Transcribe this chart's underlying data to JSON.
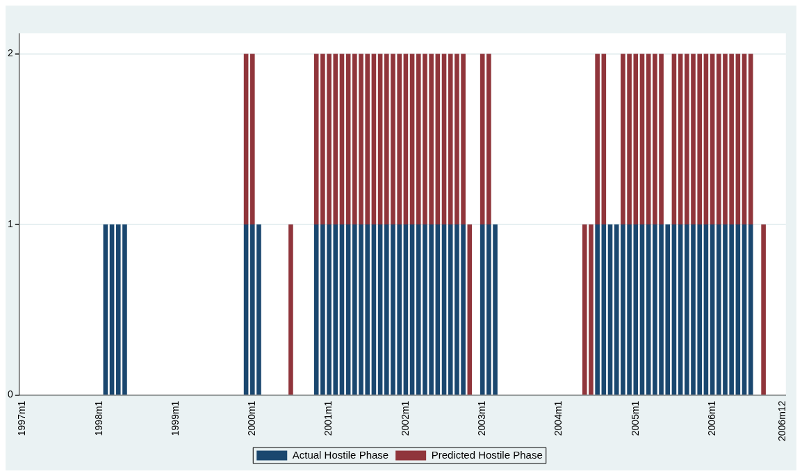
{
  "chart_data": {
    "type": "bar",
    "stacked": true,
    "categories": [
      "1997m1",
      null,
      null,
      null,
      null,
      null,
      null,
      null,
      null,
      null,
      null,
      null,
      "1998m1",
      null,
      null,
      null,
      null,
      null,
      null,
      null,
      null,
      null,
      null,
      null,
      "1999m1",
      null,
      null,
      null,
      null,
      null,
      null,
      null,
      null,
      null,
      null,
      null,
      "2000m1",
      null,
      null,
      null,
      null,
      null,
      null,
      null,
      null,
      null,
      null,
      null,
      "2001m1",
      null,
      null,
      null,
      null,
      null,
      null,
      null,
      null,
      null,
      null,
      null,
      "2002m1",
      null,
      null,
      null,
      null,
      null,
      null,
      null,
      null,
      null,
      null,
      null,
      "2003m1",
      null,
      null,
      null,
      null,
      null,
      null,
      null,
      null,
      null,
      null,
      null,
      "2004m1",
      null,
      null,
      null,
      null,
      null,
      null,
      null,
      null,
      null,
      null,
      null,
      "2005m1",
      null,
      null,
      null,
      null,
      null,
      null,
      null,
      null,
      null,
      null,
      null,
      "2006m1",
      null,
      null,
      null,
      null,
      null,
      null,
      null,
      null,
      null,
      null,
      "2006m12"
    ],
    "series": [
      {
        "name": "Actual Hostile Phase",
        "color": "#1a476f",
        "values": [
          0,
          0,
          0,
          0,
          0,
          0,
          0,
          0,
          0,
          0,
          0,
          0,
          0,
          1,
          1,
          1,
          1,
          0,
          0,
          0,
          0,
          0,
          0,
          0,
          0,
          0,
          0,
          0,
          0,
          0,
          0,
          0,
          0,
          0,
          0,
          1,
          1,
          1,
          0,
          0,
          0,
          0,
          0,
          0,
          0,
          0,
          1,
          1,
          1,
          1,
          1,
          1,
          1,
          1,
          1,
          1,
          1,
          1,
          1,
          1,
          1,
          1,
          1,
          1,
          1,
          1,
          1,
          1,
          1,
          1,
          0,
          0,
          1,
          1,
          1,
          0,
          0,
          0,
          0,
          0,
          0,
          0,
          0,
          0,
          0,
          0,
          0,
          0,
          0,
          0,
          1,
          1,
          1,
          1,
          1,
          1,
          1,
          1,
          1,
          1,
          1,
          1,
          1,
          1,
          1,
          1,
          1,
          1,
          1,
          1,
          1,
          1,
          1,
          1,
          1,
          0,
          0,
          0,
          0,
          0
        ]
      },
      {
        "name": "Predicted Hostile Phase",
        "color": "#90353b",
        "values": [
          0,
          0,
          0,
          0,
          0,
          0,
          0,
          0,
          0,
          0,
          0,
          0,
          0,
          0,
          0,
          0,
          0,
          0,
          0,
          0,
          0,
          0,
          0,
          0,
          0,
          0,
          0,
          0,
          0,
          0,
          0,
          0,
          0,
          0,
          0,
          1,
          1,
          0,
          0,
          0,
          0,
          0,
          1,
          0,
          0,
          0,
          1,
          1,
          1,
          1,
          1,
          1,
          1,
          1,
          1,
          1,
          1,
          1,
          1,
          1,
          1,
          1,
          1,
          1,
          1,
          1,
          1,
          1,
          1,
          1,
          1,
          0,
          1,
          1,
          0,
          0,
          0,
          0,
          0,
          0,
          0,
          0,
          0,
          0,
          0,
          0,
          0,
          0,
          1,
          1,
          1,
          1,
          0,
          0,
          1,
          1,
          1,
          1,
          1,
          1,
          1,
          0,
          1,
          1,
          1,
          1,
          1,
          1,
          1,
          1,
          1,
          1,
          1,
          1,
          1,
          0,
          1,
          0,
          0,
          0
        ]
      }
    ],
    "ylim": [
      0,
      2.12
    ],
    "yticks": [
      0,
      1,
      2
    ],
    "grid": "y",
    "legend": "bottom"
  }
}
